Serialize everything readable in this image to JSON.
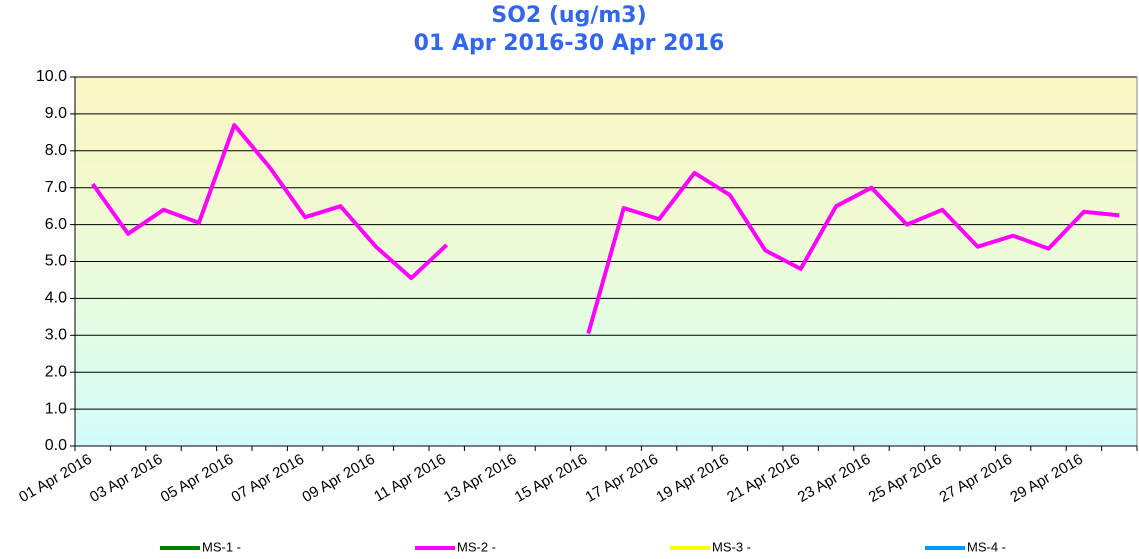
{
  "chart_data": {
    "type": "line",
    "title": "SO2 (ug/m3)",
    "subtitle": "01 Apr 2016-30 Apr 2016",
    "categories": [
      "01 Apr 2016",
      null,
      "03 Apr 2016",
      null,
      "05 Apr 2016",
      null,
      "07 Apr 2016",
      null,
      "09 Apr 2016",
      null,
      "11 Apr 2016",
      null,
      "13 Apr 2016",
      null,
      "15 Apr 2016",
      null,
      "17 Apr 2016",
      null,
      "19 Apr 2016",
      null,
      "21 Apr 2016",
      null,
      "23 Apr 2016",
      null,
      "25 Apr 2016",
      null,
      "27 Apr 2016",
      null,
      "29 Apr 2016",
      null
    ],
    "series": [
      {
        "name": "MS-1 -",
        "color": "#008000",
        "values": [
          null,
          null,
          null,
          null,
          null,
          null,
          null,
          null,
          null,
          null,
          null,
          null,
          null,
          null,
          null,
          null,
          null,
          null,
          null,
          null,
          null,
          null,
          null,
          null,
          null,
          null,
          null,
          null,
          null,
          null
        ]
      },
      {
        "name": "MS-2 -",
        "color": "#ff00ff",
        "values": [
          7.1,
          5.75,
          6.4,
          6.05,
          8.7,
          7.55,
          6.2,
          6.5,
          5.4,
          4.55,
          5.45,
          null,
          null,
          null,
          3.05,
          6.45,
          6.15,
          7.4,
          6.8,
          5.3,
          4.8,
          6.5,
          7.0,
          6.0,
          6.4,
          5.4,
          5.7,
          5.35,
          6.35,
          6.25
        ]
      },
      {
        "name": "MS-3 -",
        "color": "#ffff00",
        "values": [
          null,
          null,
          null,
          null,
          null,
          null,
          null,
          null,
          null,
          null,
          null,
          null,
          null,
          null,
          null,
          null,
          null,
          null,
          null,
          null,
          null,
          null,
          null,
          null,
          null,
          null,
          null,
          null,
          null,
          null
        ]
      },
      {
        "name": "MS-4 -",
        "color": "#0099ff",
        "values": [
          null,
          null,
          null,
          null,
          null,
          null,
          null,
          null,
          null,
          null,
          null,
          null,
          null,
          null,
          null,
          null,
          null,
          null,
          null,
          null,
          null,
          null,
          null,
          null,
          null,
          null,
          null,
          null,
          null,
          null
        ]
      }
    ],
    "ylim": [
      0,
      10
    ],
    "yticks": [
      {
        "value": 0,
        "label": "0.0"
      },
      {
        "value": 1,
        "label": "1.0"
      },
      {
        "value": 2,
        "label": "2.0"
      },
      {
        "value": 3,
        "label": "3.0"
      },
      {
        "value": 4,
        "label": "4.0"
      },
      {
        "value": 5,
        "label": "5.0"
      },
      {
        "value": 6,
        "label": "6.0"
      },
      {
        "value": 7,
        "label": "7.0"
      },
      {
        "value": 8,
        "label": "8.0"
      },
      {
        "value": 9,
        "label": "9.0"
      },
      {
        "value": 10,
        "label": "10.0"
      }
    ],
    "grid": true
  }
}
